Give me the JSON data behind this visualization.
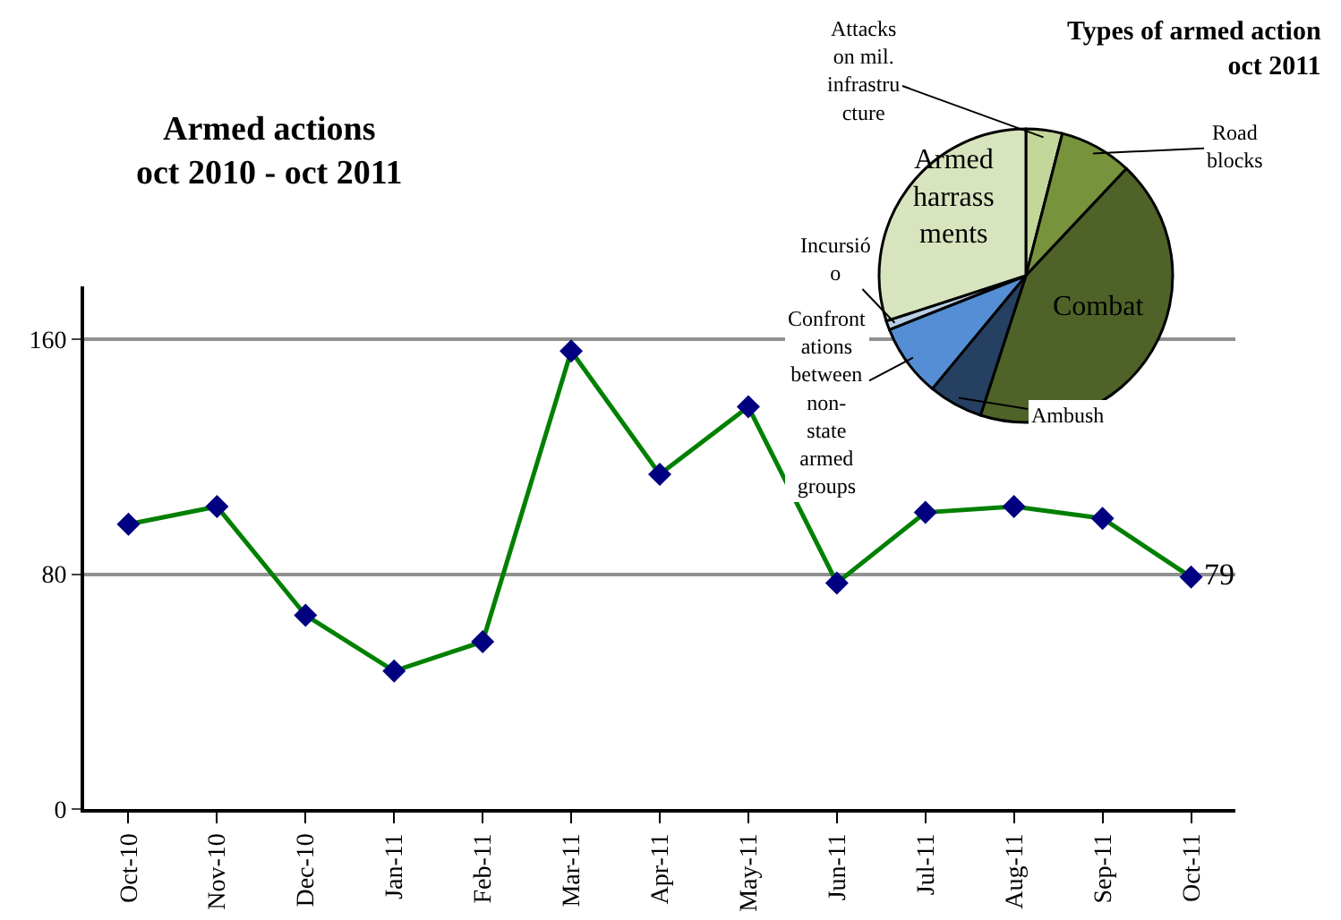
{
  "chart_data": [
    {
      "type": "line",
      "title": "Armed actions\noct 2010 - oct 2011",
      "categories": [
        "Oct-10",
        "Nov-10",
        "Dec-10",
        "Jan-11",
        "Feb-11",
        "Mar-11",
        "Apr-11",
        "May-11",
        "Jun-11",
        "Jul-11",
        "Aug-11",
        "Sep-11",
        "Oct-11"
      ],
      "series": [
        {
          "color": "#008000",
          "colors": [
            "#000080",
            "#000080",
            "#000080",
            "#000080",
            "#000080",
            "#000080",
            "#000080",
            "#000080",
            "#000080",
            "#000080",
            "#000080",
            "#000080",
            "#000080"
          ],
          "values": [
            97,
            103,
            66,
            47,
            57,
            156,
            114,
            137,
            77,
            101,
            103,
            99,
            79
          ],
          "value_labels": [
            null,
            null,
            null,
            null,
            null,
            null,
            null,
            null,
            null,
            null,
            null,
            null,
            "79"
          ]
        }
      ],
      "ylim": [
        0,
        178
      ],
      "yticks": [
        0,
        80,
        160
      ],
      "grid": "y",
      "marker": "diamond",
      "line_style": "solid"
    },
    {
      "type": "pie",
      "title": "Types of armed action\noct 2011",
      "categories": [
        "Attacks on mil. infrastructure",
        "Road blocks",
        "Combat",
        "Ambush",
        "Confrontations between non-state armed groups",
        "Incursió o",
        "Armed harrassments"
      ],
      "values": [
        4,
        8,
        43,
        6,
        8,
        1,
        30
      ],
      "colors": [
        "#c4d79b",
        "#77933c",
        "#4f6228",
        "#254061",
        "#558ed5",
        "#b9cde5",
        "#d7e4bd"
      ]
    }
  ]
}
